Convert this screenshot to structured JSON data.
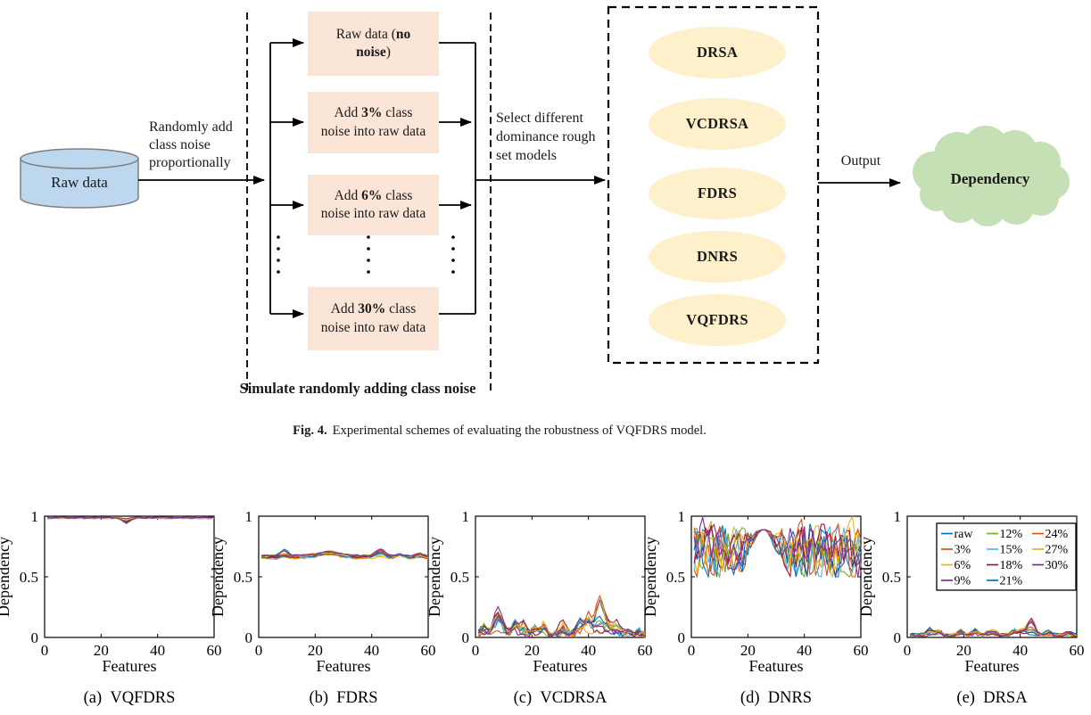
{
  "figure": {
    "diagram": {
      "cylinder_label": "Raw data",
      "arrow1_label": [
        "Randomly add",
        "class noise",
        "proportionally"
      ],
      "noise_boxes": [
        {
          "pre": "Raw data (",
          "bold": "no noise",
          "post": ")"
        },
        {
          "pre": "Add ",
          "bold": "3%",
          "post": " class noise into raw data"
        },
        {
          "pre": "Add ",
          "bold": "6%",
          "post": " class noise into raw data"
        },
        {
          "pre": "Add ",
          "bold": "30%",
          "post": " class noise into raw data"
        }
      ],
      "select_label": [
        "Select different",
        "dominance rough",
        "set models"
      ],
      "models": [
        "DRSA",
        "VCDRSA",
        "FDRS",
        "DNRS",
        "VQFDRS"
      ],
      "output_label": "Output",
      "cloud_label": "Dependency",
      "bottom_label": "Simulate randomly adding class noise",
      "colors": {
        "cylinder": "#BDD7EE",
        "noise_box": "#FBE5D6",
        "model_ellipse": "#FDF0CB",
        "cloud": "#C5E0B4",
        "line": "#000000"
      }
    },
    "caption": {
      "bold": "Fig. 4.",
      "text": "Experimental schemes of evaluating the robustness of VQFDRS model."
    }
  },
  "chart_series": {
    "labels": [
      "raw",
      "3%",
      "6%",
      "9%",
      "12%",
      "15%",
      "18%",
      "21%",
      "24%",
      "27%",
      "30%"
    ],
    "colors": [
      "#0072BD",
      "#D95319",
      "#EDB120",
      "#7E2F8E",
      "#77AC30",
      "#4DBEEE",
      "#A2142F",
      "#0072BD",
      "#D95319",
      "#EDB120",
      "#7E2F8E"
    ]
  },
  "chart_data": [
    {
      "id": "a",
      "type": "line",
      "caption": {
        "index": "(a)",
        "label": "VQFDRS"
      },
      "xlabel": "Features",
      "ylabel": "Dependency",
      "xlim": [
        0,
        60
      ],
      "ylim": [
        0,
        1
      ],
      "xticks": [
        0,
        20,
        40,
        60
      ],
      "yticks": [
        0,
        0.5,
        1
      ],
      "grid": false,
      "show_legend": false,
      "summary": "All 11 noise levels stay near dependency 1.0 across 60 features; small shared dip to about 0.93 near feature 29.",
      "profile": {
        "seed": 11,
        "base": 0.985,
        "spread": 0.004,
        "noise": 0.005,
        "smooth": 0.2,
        "clamp": [
          0.9,
          1.0
        ],
        "peaks": [
          {
            "x": 29,
            "w": 1.3,
            "h": -0.05,
            "vary": 0.85
          }
        ]
      }
    },
    {
      "id": "b",
      "type": "line",
      "caption": {
        "index": "(b)",
        "label": "FDRS"
      },
      "xlabel": "Features",
      "ylabel": "Dependency",
      "xlim": [
        0,
        60
      ],
      "ylim": [
        0,
        1
      ],
      "xticks": [
        0,
        20,
        40,
        60
      ],
      "yticks": [
        0,
        0.5,
        1
      ],
      "grid": false,
      "show_legend": false,
      "summary": "All curves lie in a flat band around 0.63-0.72 with small bumps near features 9, 25, 43 and 50.",
      "profile": {
        "seed": 22,
        "base": 0.663,
        "spread": 0.015,
        "noise": 0.008,
        "smooth": 0.25,
        "clamp": [
          0.6,
          0.78
        ],
        "peaks": [
          {
            "x": 9,
            "w": 1.2,
            "h": 0.055,
            "vary": 0.9
          },
          {
            "x": 25,
            "w": 3.5,
            "h": 0.035,
            "vary": 0.3
          },
          {
            "x": 43,
            "w": 1.5,
            "h": 0.06,
            "vary": 0.95
          },
          {
            "x": 50,
            "w": 1.2,
            "h": 0.045,
            "vary": 0.95
          },
          {
            "x": 57,
            "w": 1.0,
            "h": 0.03,
            "vary": 0.9
          }
        ]
      }
    },
    {
      "id": "c",
      "type": "line",
      "caption": {
        "index": "(c)",
        "label": "VCDRSA"
      },
      "xlabel": "Features",
      "ylabel": "Dependency",
      "xlim": [
        0,
        60
      ],
      "ylim": [
        0,
        1
      ],
      "xticks": [
        0,
        20,
        40,
        60
      ],
      "yticks": [
        0,
        0.5,
        1
      ],
      "grid": false,
      "show_legend": false,
      "summary": "Spiky curves near 0 with peaks ~0.25 around features 8-9, ~0.2 near 37-40, and the largest peak ~0.42 near feature 44.",
      "profile": {
        "seed": 33,
        "base": 0.02,
        "spread": 0.01,
        "noise": 0.025,
        "smooth": 0,
        "clamp": [
          0.0,
          1.0
        ],
        "peaks": [
          {
            "x": 3,
            "w": 1.2,
            "h": 0.1,
            "vary": 0.95
          },
          {
            "x": 8,
            "w": 1.5,
            "h": 0.22,
            "vary": 0.9
          },
          {
            "x": 14,
            "w": 1.2,
            "h": 0.12,
            "vary": 0.95
          },
          {
            "x": 17,
            "w": 1.0,
            "h": 0.1,
            "vary": 0.95
          },
          {
            "x": 21,
            "w": 1.0,
            "h": 0.07,
            "vary": 0.95
          },
          {
            "x": 24,
            "w": 1.0,
            "h": 0.13,
            "vary": 0.95
          },
          {
            "x": 31,
            "w": 1.5,
            "h": 0.1,
            "vary": 0.95
          },
          {
            "x": 37,
            "w": 1.2,
            "h": 0.18,
            "vary": 0.9
          },
          {
            "x": 40,
            "w": 1.2,
            "h": 0.2,
            "vary": 0.9
          },
          {
            "x": 44,
            "w": 1.4,
            "h": 0.38,
            "vary": 0.92
          },
          {
            "x": 47,
            "w": 1.0,
            "h": 0.12,
            "vary": 0.9
          },
          {
            "x": 50,
            "w": 1.2,
            "h": 0.13,
            "vary": 0.9
          },
          {
            "x": 54,
            "w": 1.0,
            "h": 0.05,
            "vary": 0.9
          },
          {
            "x": 58,
            "w": 1.0,
            "h": 0.05,
            "vary": 0.9
          }
        ]
      }
    },
    {
      "id": "d",
      "type": "line",
      "caption": {
        "index": "(d)",
        "label": "DNRS"
      },
      "xlabel": "Features",
      "ylabel": "Dependency",
      "xlim": [
        0,
        60
      ],
      "ylim": [
        0,
        1
      ],
      "xticks": [
        0,
        20,
        40,
        60
      ],
      "yticks": [
        0,
        0.5,
        1
      ],
      "grid": false,
      "show_legend": false,
      "summary": "Highly volatile curves oscillating between 0.5 and 1.0 at both ends; all noise levels converge onto a shared curve peaking ~0.9 around features 22-28.",
      "profile": {
        "seed": 44,
        "base": 0.7,
        "spread": 0.05,
        "noise": 0.32,
        "smooth": 0.35,
        "clamp": [
          0.5,
          1.0
        ],
        "peaks": [],
        "converge": {
          "center": 25.5,
          "width": 5.0,
          "cbase": 0.6,
          "camp": 0.29,
          "cwidth": 6.5
        }
      }
    },
    {
      "id": "e",
      "type": "line",
      "caption": {
        "index": "(e)",
        "label": "DRSA"
      },
      "xlabel": "Features",
      "ylabel": "Dependency",
      "xlim": [
        0,
        60
      ],
      "ylim": [
        0,
        1
      ],
      "xticks": [
        0,
        20,
        40,
        60
      ],
      "yticks": [
        0,
        0.5,
        1
      ],
      "grid": false,
      "show_legend": true,
      "summary": "Curves hug 0-0.06 with tiny bumps; one peak ~0.17 near feature 44. Legend with all 11 noise levels sits top-right.",
      "profile": {
        "seed": 55,
        "base": 0.022,
        "spread": 0.008,
        "noise": 0.014,
        "smooth": 0.15,
        "clamp": [
          0.004,
          1.0
        ],
        "peaks": [
          {
            "x": 8,
            "w": 1.2,
            "h": 0.06,
            "vary": 0.9
          },
          {
            "x": 11,
            "w": 1.0,
            "h": 0.04,
            "vary": 0.9
          },
          {
            "x": 19,
            "w": 1.0,
            "h": 0.05,
            "vary": 0.9
          },
          {
            "x": 24,
            "w": 1.0,
            "h": 0.05,
            "vary": 0.9
          },
          {
            "x": 30,
            "w": 2.0,
            "h": 0.04,
            "vary": 0.9
          },
          {
            "x": 38,
            "w": 1.2,
            "h": 0.05,
            "vary": 0.9
          },
          {
            "x": 41,
            "w": 1.2,
            "h": 0.06,
            "vary": 0.9
          },
          {
            "x": 44,
            "w": 1.3,
            "h": 0.13,
            "vary": 0.97
          },
          {
            "x": 50,
            "w": 1.2,
            "h": 0.04,
            "vary": 0.9
          },
          {
            "x": 57,
            "w": 1.0,
            "h": 0.03,
            "vary": 0.9
          }
        ]
      }
    }
  ]
}
